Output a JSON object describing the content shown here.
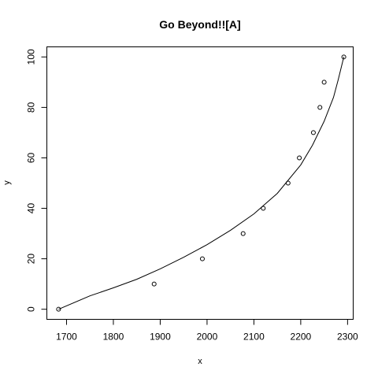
{
  "chart_data": {
    "type": "scatter",
    "title": "Go Beyond!![A]",
    "xlabel": "x",
    "ylabel": "y",
    "xlim": [
      1658,
      2312
    ],
    "ylim": [
      -4,
      104
    ],
    "x_ticks": [
      1700,
      1800,
      1900,
      2000,
      2100,
      2200,
      2300
    ],
    "y_ticks": [
      0,
      20,
      40,
      60,
      80,
      100
    ],
    "grid": false,
    "legend": "none",
    "points": [
      {
        "x": 1683,
        "y": 0
      },
      {
        "x": 1887,
        "y": 10
      },
      {
        "x": 1990,
        "y": 20
      },
      {
        "x": 2077,
        "y": 30
      },
      {
        "x": 2120,
        "y": 40
      },
      {
        "x": 2173,
        "y": 50
      },
      {
        "x": 2197,
        "y": 60
      },
      {
        "x": 2227,
        "y": 70
      },
      {
        "x": 2241,
        "y": 80
      },
      {
        "x": 2250,
        "y": 90
      },
      {
        "x": 2292,
        "y": 100
      }
    ],
    "fit_curve": {
      "x": [
        1683,
        1750,
        1800,
        1850,
        1900,
        1950,
        2000,
        2050,
        2100,
        2150,
        2200,
        2225,
        2250,
        2270,
        2280,
        2292
      ],
      "y": [
        0,
        5.3,
        8.5,
        11.9,
        16.0,
        20.6,
        25.6,
        31.3,
        37.8,
        45.9,
        57.2,
        65.0,
        74.5,
        84.0,
        91.0,
        100
      ]
    },
    "colors": {
      "points": "#000000",
      "line": "#000000",
      "axes": "#000000"
    }
  }
}
